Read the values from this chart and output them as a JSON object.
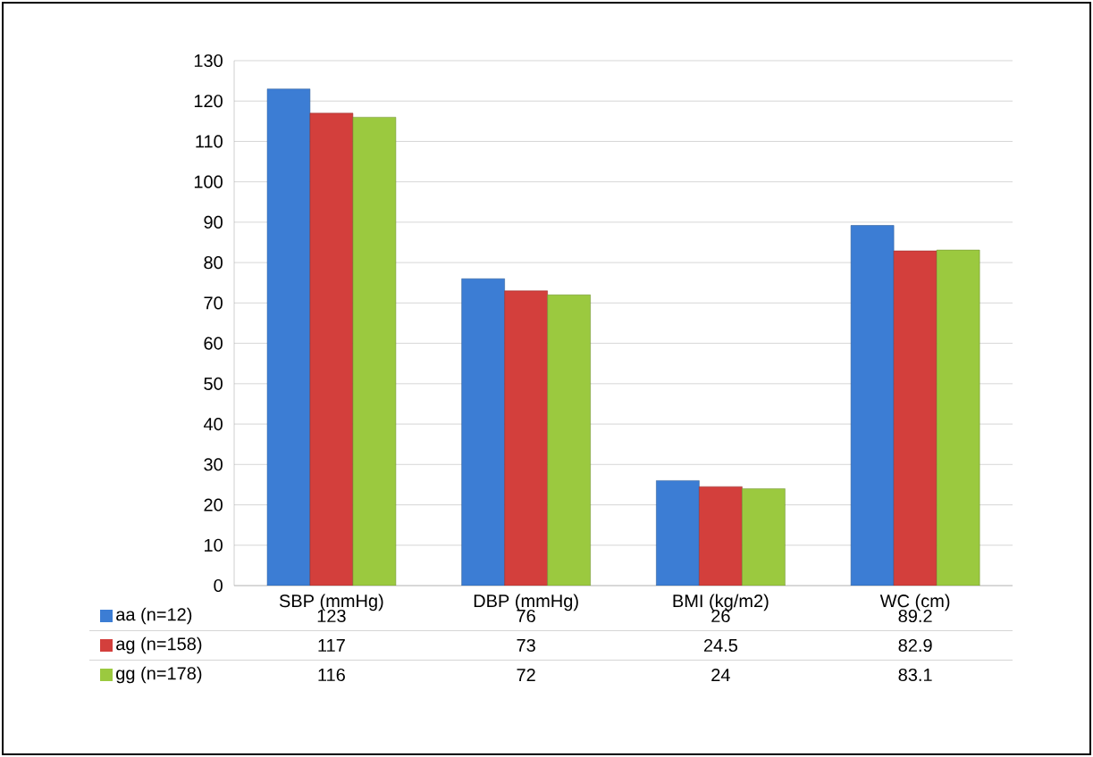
{
  "chart_data": {
    "type": "bar",
    "categories": [
      "SBP (mmHg)",
      "DBP (mmHg)",
      "BMI (kg/m2)",
      "WC (cm)"
    ],
    "series": [
      {
        "name": "aa (n=12)",
        "color": "#3c7dd4",
        "values": [
          123,
          76,
          26,
          89.2
        ]
      },
      {
        "name": "ag (n=158)",
        "color": "#d33f3c",
        "values": [
          117,
          73,
          24.5,
          82.9
        ]
      },
      {
        "name": "gg (n=178)",
        "color": "#9bc93f",
        "values": [
          116,
          72,
          24,
          83.1
        ]
      }
    ],
    "ylim": [
      0,
      130
    ],
    "yticks": [
      0,
      10,
      20,
      30,
      40,
      50,
      60,
      70,
      80,
      90,
      100,
      110,
      120,
      130
    ],
    "grid": "y",
    "legend": "bottom",
    "data_labels": true
  }
}
